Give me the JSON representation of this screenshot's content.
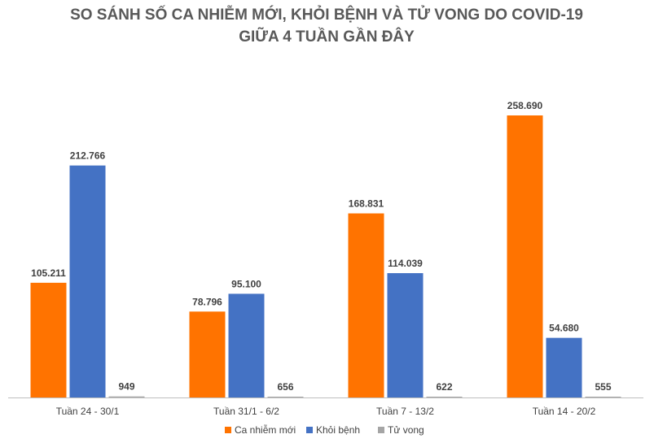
{
  "chart_data": {
    "type": "bar",
    "title_lines": [
      "SO SÁNH SỐ CA NHIỄM MỚI, KHỎI BỆNH VÀ TỬ VONG DO COVID-19",
      "GIỮA 4 TUẦN GẦN ĐÂY"
    ],
    "categories": [
      "Tuần 24 - 30/1",
      "Tuần 31/1 - 6/2",
      "Tuần 7 - 13/2",
      "Tuần 14 - 20/2"
    ],
    "series": [
      {
        "name": "Ca nhiễm mới",
        "color": "#ff7300",
        "values": [
          105211,
          78796,
          168831,
          258690
        ],
        "labels": [
          "105.211",
          "78.796",
          "168.831",
          "258.690"
        ]
      },
      {
        "name": "Khỏi bệnh",
        "color": "#4472c4",
        "values": [
          212766,
          95100,
          114039,
          54680
        ],
        "labels": [
          "212.766",
          "95.100",
          "114.039",
          "54.680"
        ]
      },
      {
        "name": "Tử vong",
        "color": "#a5a5a5",
        "values": [
          949,
          656,
          622,
          555
        ],
        "labels": [
          "949",
          "656",
          "622",
          "555"
        ]
      }
    ],
    "ylim": [
      0,
      290000
    ],
    "grid": false,
    "legend": "bottom-center",
    "axis_color": "#bfbfbf"
  }
}
